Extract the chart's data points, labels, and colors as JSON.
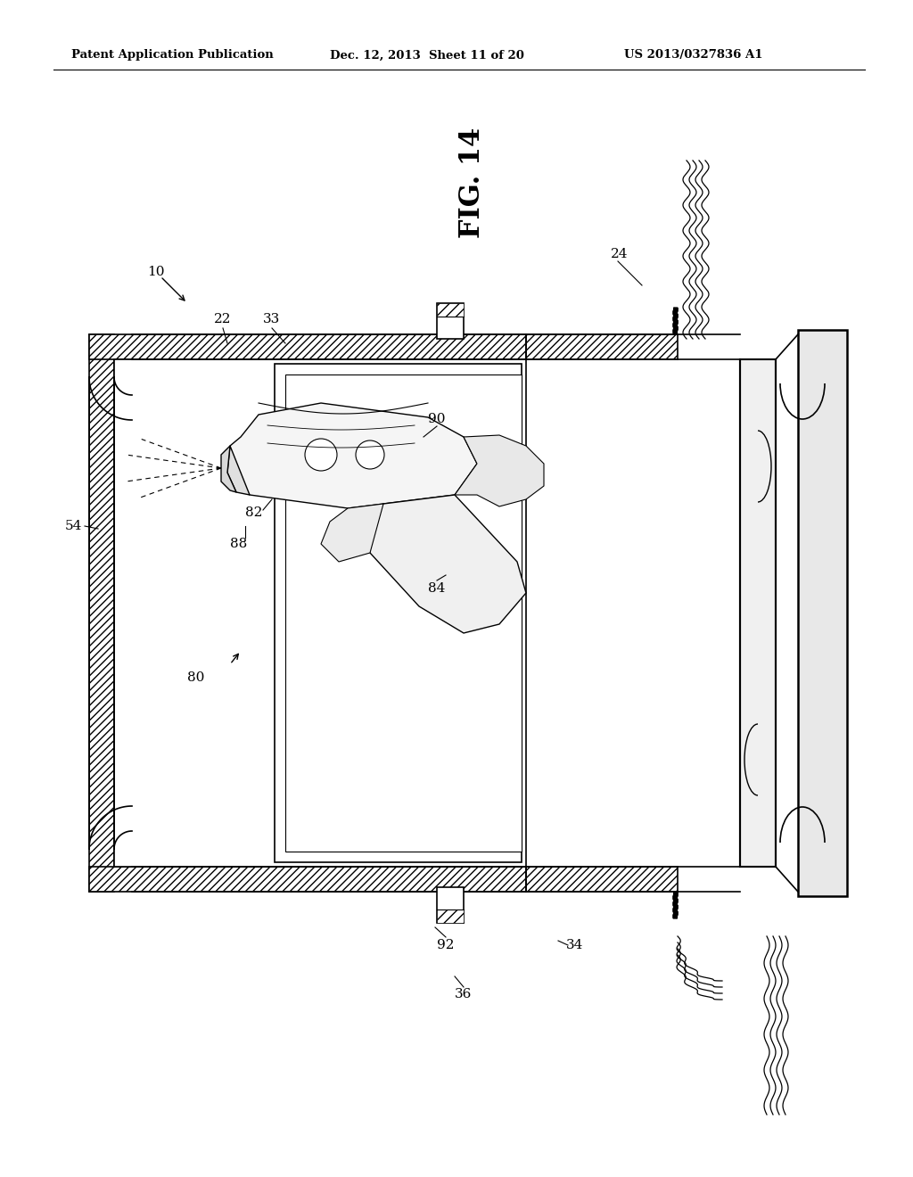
{
  "header_left": "Patent Application Publication",
  "header_center": "Dec. 12, 2013  Sheet 11 of 20",
  "header_right": "US 2013/0327836 A1",
  "fig_title": "FIG. 14",
  "bg_color": "#ffffff",
  "lc": "#000000"
}
